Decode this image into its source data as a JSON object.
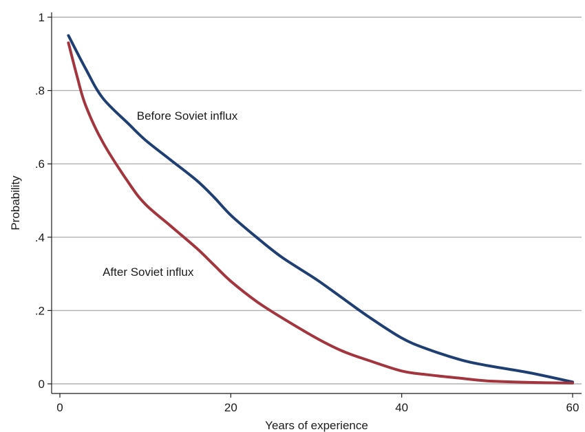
{
  "chart_data": {
    "type": "line",
    "title": "",
    "xlabel": "Years of experience",
    "ylabel": "Probability",
    "xlim": [
      0,
      60
    ],
    "ylim": [
      0,
      1
    ],
    "x_ticks": [
      0,
      20,
      40,
      60
    ],
    "x_tick_labels": [
      "0",
      "20",
      "40",
      "60"
    ],
    "y_ticks": [
      0,
      0.2,
      0.4,
      0.6,
      0.8,
      1
    ],
    "y_tick_labels": [
      "0",
      ".2",
      ".4",
      ".6",
      ".8",
      "1"
    ],
    "grid": "horizontal",
    "legend": "none",
    "series": [
      {
        "color": "#1f3f73",
        "points": [
          [
            1,
            0.95
          ],
          [
            3,
            0.86
          ],
          [
            5,
            0.78
          ],
          [
            8,
            0.71
          ],
          [
            10,
            0.665
          ],
          [
            13,
            0.61
          ],
          [
            16,
            0.555
          ],
          [
            18,
            0.51
          ],
          [
            20,
            0.46
          ],
          [
            23,
            0.4
          ],
          [
            26,
            0.345
          ],
          [
            30,
            0.285
          ],
          [
            33,
            0.235
          ],
          [
            36,
            0.185
          ],
          [
            40,
            0.125
          ],
          [
            43,
            0.095
          ],
          [
            47,
            0.065
          ],
          [
            50,
            0.05
          ],
          [
            55,
            0.03
          ],
          [
            60,
            0.005
          ]
        ]
      },
      {
        "color": "#a3353e",
        "points": [
          [
            1,
            0.93
          ],
          [
            2,
            0.84
          ],
          [
            3,
            0.76
          ],
          [
            5,
            0.66
          ],
          [
            8,
            0.55
          ],
          [
            10,
            0.49
          ],
          [
            13,
            0.43
          ],
          [
            16,
            0.37
          ],
          [
            18,
            0.325
          ],
          [
            20,
            0.28
          ],
          [
            23,
            0.225
          ],
          [
            26,
            0.18
          ],
          [
            30,
            0.125
          ],
          [
            33,
            0.09
          ],
          [
            36,
            0.065
          ],
          [
            40,
            0.035
          ],
          [
            43,
            0.025
          ],
          [
            47,
            0.015
          ],
          [
            50,
            0.008
          ],
          [
            55,
            0.004
          ],
          [
            60,
            0.002
          ]
        ]
      }
    ],
    "annotations": [
      {
        "text": "Before Soviet influx",
        "x": 9,
        "y": 0.72
      },
      {
        "text": "After Soviet influx",
        "x": 5,
        "y": 0.295
      }
    ]
  }
}
